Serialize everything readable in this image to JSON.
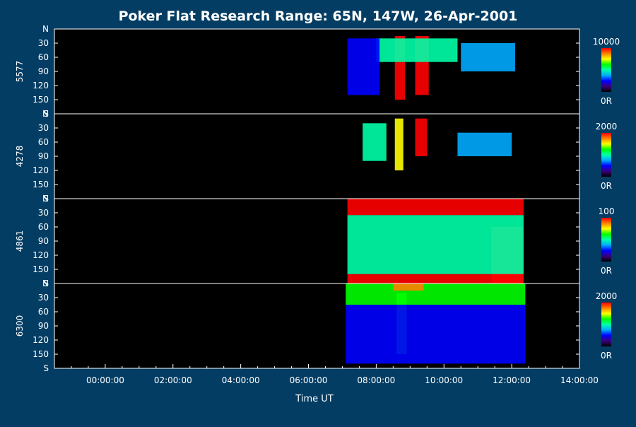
{
  "chart_data": {
    "type": "heatmap",
    "title": "Poker Flat Research Range: 65N, 147W, 26-Apr-2001",
    "xlabel": "Time UT",
    "x_ticks": [
      "00:00:00",
      "02:00:00",
      "04:00:00",
      "06:00:00",
      "08:00:00",
      "10:00:00",
      "12:00:00",
      "14:00:00"
    ],
    "x_range_hours": [
      -1.5,
      14.0
    ],
    "data_time_range_hours": [
      7.1,
      12.35
    ],
    "y_ticks": [
      "N",
      "30",
      "60",
      "90",
      "120",
      "150",
      "S"
    ],
    "y_range_deg": [
      0,
      180
    ],
    "panels": [
      {
        "wavelength": "5577",
        "scale_max": "10000",
        "scale_min": "0R",
        "features": [
          {
            "type": "band",
            "t0": 8.55,
            "t1": 8.85,
            "a0": 15,
            "a1": 150,
            "level": 0.95
          },
          {
            "type": "band",
            "t0": 9.15,
            "t1": 9.55,
            "a0": 15,
            "a1": 140,
            "level": 0.95
          },
          {
            "type": "band",
            "t0": 8.0,
            "t1": 10.4,
            "a0": 20,
            "a1": 70,
            "level": 0.45
          },
          {
            "type": "band",
            "t0": 10.5,
            "t1": 12.1,
            "a0": 30,
            "a1": 90,
            "level": 0.35
          },
          {
            "type": "band",
            "t0": 7.15,
            "t1": 8.1,
            "a0": 20,
            "a1": 140,
            "level": 0.25
          }
        ]
      },
      {
        "wavelength": "4278",
        "scale_max": "2000",
        "scale_min": "0R",
        "features": [
          {
            "type": "band",
            "t0": 8.55,
            "t1": 8.8,
            "a0": 10,
            "a1": 120,
            "level": 0.75
          },
          {
            "type": "band",
            "t0": 9.15,
            "t1": 9.5,
            "a0": 10,
            "a1": 90,
            "level": 0.95
          },
          {
            "type": "band",
            "t0": 7.6,
            "t1": 8.3,
            "a0": 20,
            "a1": 100,
            "level": 0.5
          },
          {
            "type": "band",
            "t0": 10.4,
            "t1": 12.0,
            "a0": 40,
            "a1": 90,
            "level": 0.35
          }
        ]
      },
      {
        "wavelength": "4861",
        "scale_max": "100",
        "scale_min": "0R",
        "features": [
          {
            "type": "band",
            "t0": 7.15,
            "t1": 12.35,
            "a0": 0,
            "a1": 35,
            "level": 1.0
          },
          {
            "type": "band",
            "t0": 7.15,
            "t1": 12.35,
            "a0": 160,
            "a1": 180,
            "level": 1.0
          },
          {
            "type": "band",
            "t0": 11.4,
            "t1": 12.35,
            "a0": 60,
            "a1": 180,
            "level": 1.0
          },
          {
            "type": "band",
            "t0": 7.15,
            "t1": 12.35,
            "a0": 35,
            "a1": 160,
            "level": 0.5
          }
        ]
      },
      {
        "wavelength": "6300",
        "scale_max": "2000",
        "scale_min": "0R",
        "features": [
          {
            "type": "band",
            "t0": 7.1,
            "t1": 12.4,
            "a0": 0,
            "a1": 45,
            "level": 0.6
          },
          {
            "type": "band",
            "t0": 8.5,
            "t1": 9.4,
            "a0": 0,
            "a1": 15,
            "level": 0.9
          },
          {
            "type": "band",
            "t0": 8.6,
            "t1": 8.9,
            "a0": 20,
            "a1": 150,
            "level": 0.65
          },
          {
            "type": "band",
            "t0": 7.1,
            "t1": 12.4,
            "a0": 45,
            "a1": 170,
            "level": 0.2
          }
        ]
      }
    ],
    "colorscale": [
      "#000000",
      "#3a007a",
      "#0000ff",
      "#00aaff",
      "#00ffaa",
      "#00ff00",
      "#ffff00",
      "#ff8000",
      "#ff0000"
    ],
    "frame_color": "#000000",
    "grid": false
  }
}
